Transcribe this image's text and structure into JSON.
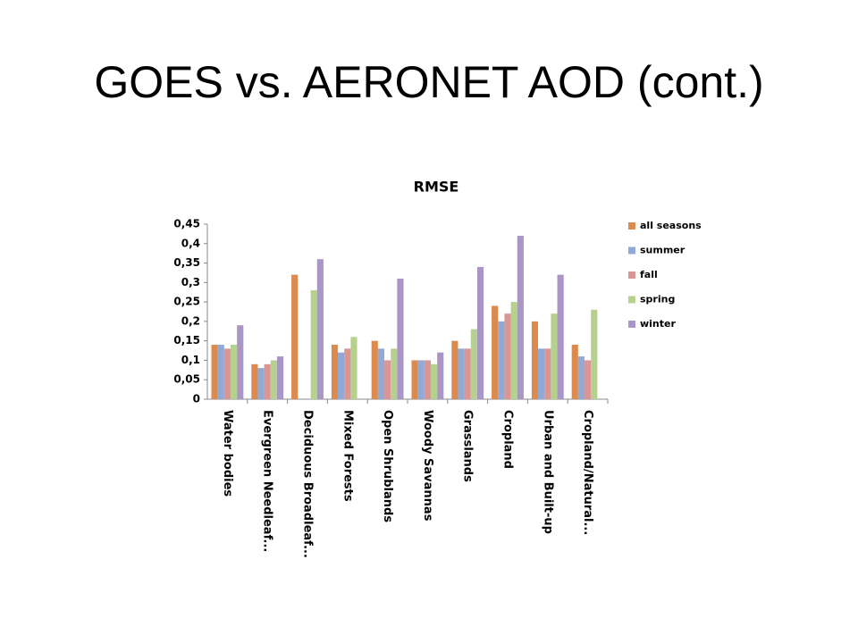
{
  "slide_title": "GOES vs. AERONET AOD (cont.)",
  "chart_data": {
    "type": "bar",
    "title": "RMSE",
    "categories": [
      "Water bodies",
      "Evergreen Needleaf...",
      "Deciduous Broadleaf...",
      "Mixed Forests",
      "Open Shrublands",
      "Woody Savannas",
      "Grasslands",
      "Cropland",
      "Urban and Built-up",
      "Cropland/Natural..."
    ],
    "series": [
      {
        "name": "all seasons",
        "color": "#dc8b4f",
        "values": [
          0.14,
          0.09,
          0.32,
          0.14,
          0.15,
          0.1,
          0.15,
          0.24,
          0.2,
          0.14
        ]
      },
      {
        "name": "summer",
        "color": "#90a9d6",
        "values": [
          0.14,
          0.08,
          null,
          0.12,
          0.13,
          0.1,
          0.13,
          0.2,
          0.13,
          0.11
        ]
      },
      {
        "name": "fall",
        "color": "#d99694",
        "values": [
          0.13,
          0.09,
          null,
          0.13,
          0.1,
          0.1,
          0.13,
          0.22,
          0.13,
          0.1
        ]
      },
      {
        "name": "spring",
        "color": "#b6d18e",
        "values": [
          0.14,
          0.1,
          0.28,
          0.16,
          0.13,
          0.09,
          0.18,
          0.25,
          0.22,
          0.23
        ]
      },
      {
        "name": "winter",
        "color": "#a996c6",
        "values": [
          0.19,
          0.11,
          0.36,
          null,
          0.31,
          0.12,
          0.34,
          0.42,
          0.32,
          null
        ]
      }
    ],
    "ylim": [
      0,
      0.45
    ],
    "yticks": [
      0,
      {
        "value": 0.05,
        "label": "0,05"
      },
      {
        "value": 0.1,
        "label": "0,1"
      },
      {
        "value": 0.15,
        "label": "0,15"
      },
      {
        "value": 0.2,
        "label": "0,2"
      },
      {
        "value": 0.25,
        "label": "0,25"
      },
      {
        "value": 0.3,
        "label": "0,3"
      },
      {
        "value": 0.35,
        "label": "0,35"
      },
      {
        "value": 0.4,
        "label": "0,4"
      },
      {
        "value": 0.45,
        "label": "0,45"
      }
    ],
    "legend": "right"
  }
}
